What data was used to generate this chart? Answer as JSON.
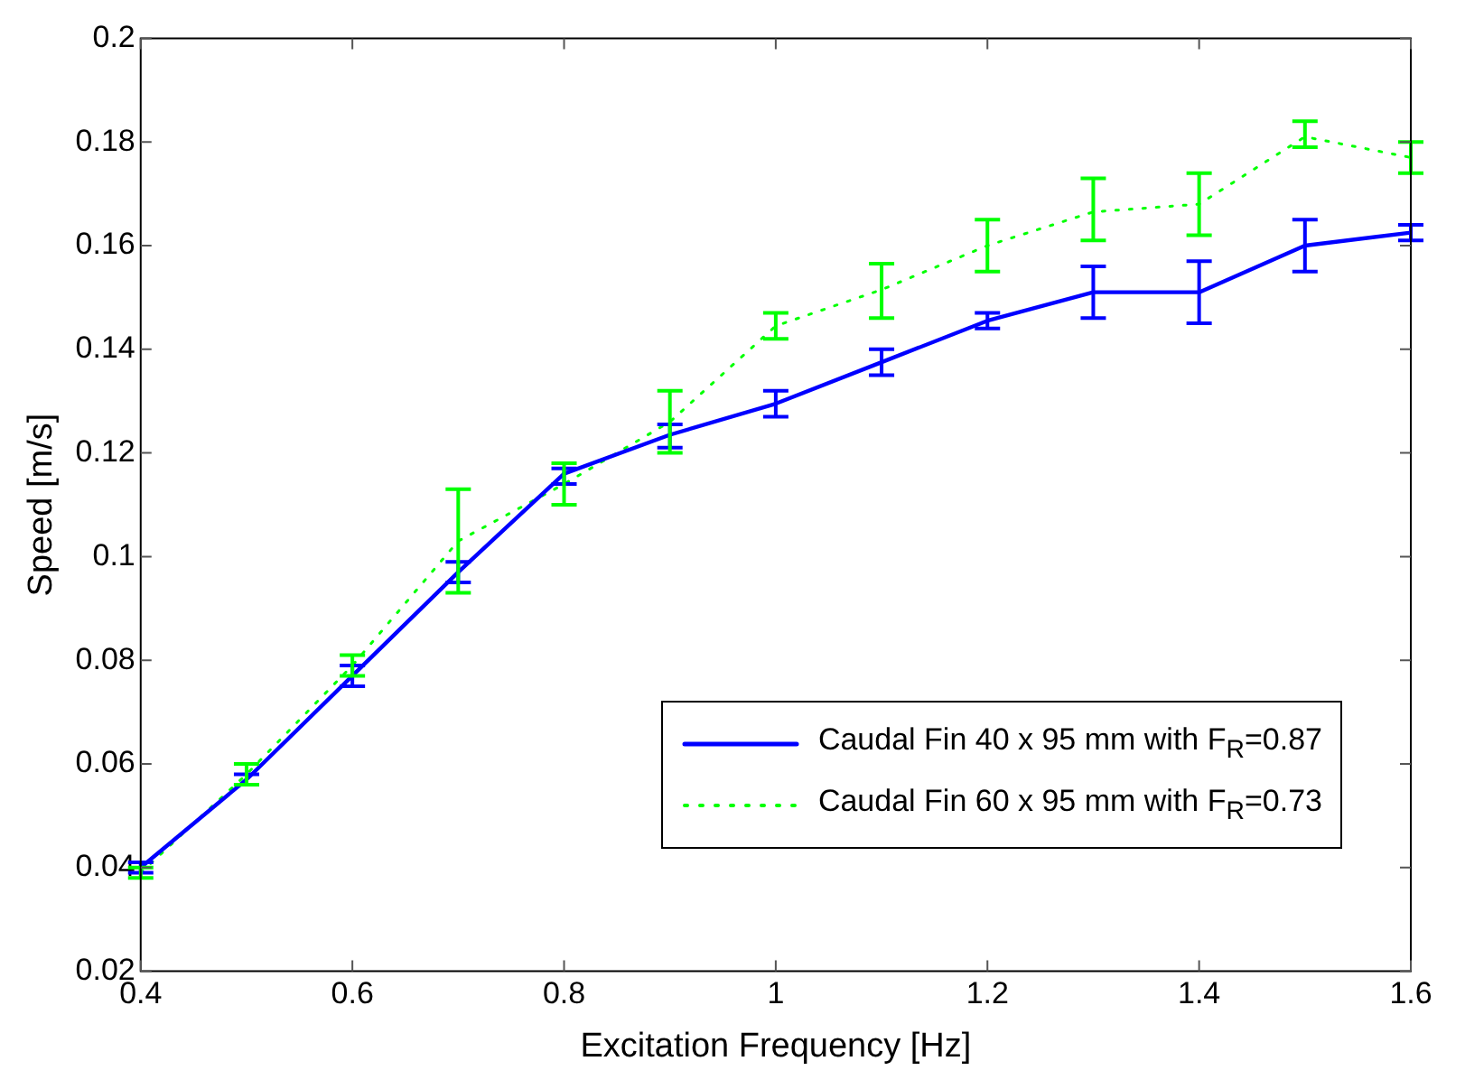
{
  "chart_data": {
    "type": "line",
    "xlabel": "Excitation Frequency [Hz]",
    "ylabel": "Speed [m/s]",
    "x": [
      0.4,
      0.5,
      0.6,
      0.7,
      0.8,
      0.9,
      1.0,
      1.1,
      1.2,
      1.3,
      1.4,
      1.5,
      1.6
    ],
    "series": [
      {
        "name": "Caudal Fin 40 x 95 mm with F$_{R}$=0.87",
        "color": "#0000ff",
        "line_style": "solid",
        "values": [
          0.04,
          0.057,
          0.077,
          0.097,
          0.116,
          0.1235,
          0.1295,
          0.1375,
          0.1455,
          0.151,
          0.151,
          0.16,
          0.1625
        ],
        "errors": [
          [
            0.039,
            0.041
          ],
          [
            0.056,
            0.058
          ],
          [
            0.075,
            0.079
          ],
          [
            0.095,
            0.099
          ],
          [
            0.114,
            0.117
          ],
          [
            0.121,
            0.1255
          ],
          [
            0.127,
            0.132
          ],
          [
            0.135,
            0.14
          ],
          [
            0.144,
            0.147
          ],
          [
            0.146,
            0.156
          ],
          [
            0.145,
            0.157
          ],
          [
            0.155,
            0.165
          ],
          [
            0.161,
            0.164
          ]
        ]
      },
      {
        "name": "Caudal Fin 60 x 95 mm with F$_{R}$=0.73",
        "color": "#00ff00",
        "line_style": "dotted",
        "values": [
          0.039,
          0.058,
          0.079,
          0.103,
          0.114,
          0.126,
          0.1445,
          0.1515,
          0.16,
          0.1665,
          0.168,
          0.181,
          0.177
        ],
        "errors": [
          [
            0.038,
            0.04
          ],
          [
            0.056,
            0.06
          ],
          [
            0.077,
            0.081
          ],
          [
            0.093,
            0.113
          ],
          [
            0.11,
            0.118
          ],
          [
            0.12,
            0.132
          ],
          [
            0.142,
            0.147
          ],
          [
            0.146,
            0.1565
          ],
          [
            0.155,
            0.165
          ],
          [
            0.161,
            0.173
          ],
          [
            0.162,
            0.174
          ],
          [
            0.179,
            0.184
          ],
          [
            0.174,
            0.18
          ]
        ]
      }
    ],
    "xlim": [
      0.4,
      1.6
    ],
    "xticks": [
      0.4,
      0.6,
      0.8,
      1,
      1.2,
      1.4,
      1.6
    ],
    "ylim": [
      0.02,
      0.2
    ],
    "yticks": [
      0.02,
      0.04,
      0.06,
      0.08,
      0.1,
      0.12,
      0.14,
      0.16,
      0.18,
      0.2
    ],
    "grid": false,
    "legend": "right"
  }
}
